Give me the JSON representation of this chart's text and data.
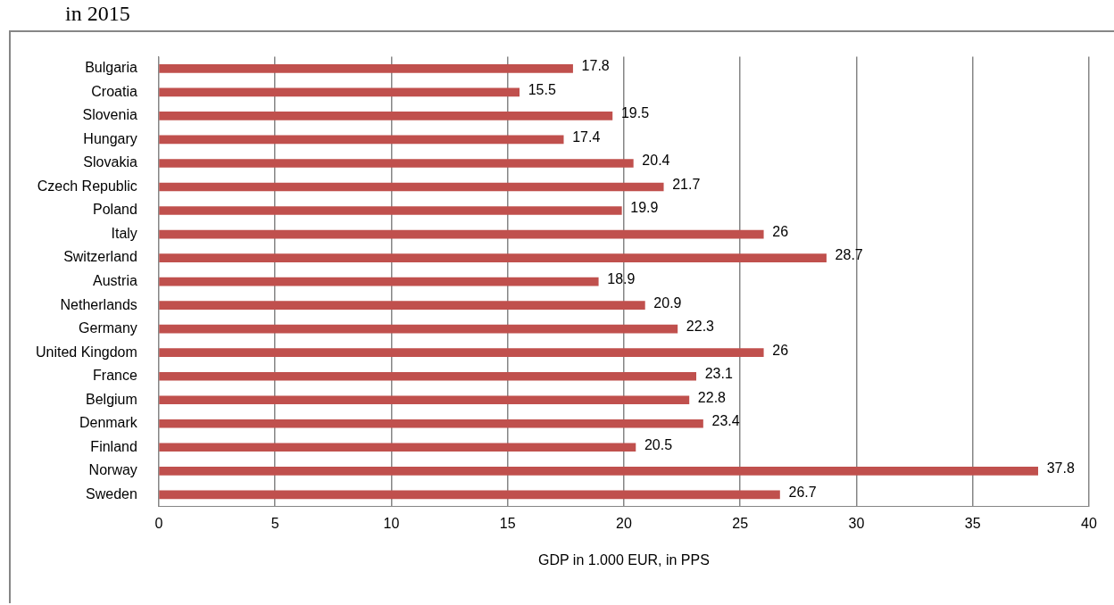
{
  "chart_data": {
    "type": "bar",
    "orientation": "horizontal",
    "title": "in 2015",
    "xlabel": "GDP in 1.000 EUR, in PPS",
    "categories": [
      "Bulgaria",
      "Croatia",
      "Slovenia",
      "Hungary",
      "Slovakia",
      "Czech Republic",
      "Poland",
      "Italy",
      "Switzerland",
      "Austria",
      "Netherlands",
      "Germany",
      "United Kingdom",
      "France",
      "Belgium",
      "Denmark",
      "Finland",
      "Norway",
      "Sweden"
    ],
    "values": [
      17.8,
      15.5,
      19.5,
      17.4,
      20.4,
      21.7,
      19.9,
      26,
      28.7,
      18.9,
      20.9,
      22.3,
      26,
      23.1,
      22.8,
      23.4,
      20.5,
      37.8,
      26.7
    ],
    "color": "#c0504d",
    "xlim": [
      0,
      40
    ],
    "xticks": [
      0,
      5,
      10,
      15,
      20,
      25,
      30,
      35,
      40
    ],
    "grid": "x",
    "data_labels": true,
    "legend": false
  }
}
